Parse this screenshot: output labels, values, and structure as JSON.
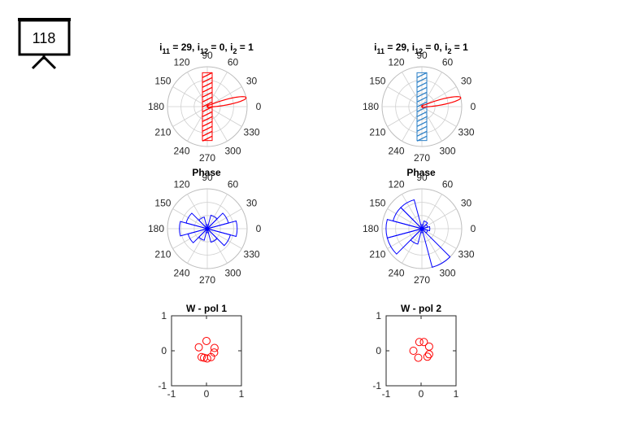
{
  "slide": {
    "number": "118"
  },
  "icon": "presentation-easel-icon",
  "colors": {
    "red": "#ff0000",
    "blue": "#0000ff",
    "hatch_blue": "#2a7fc7",
    "grid": "#cfcfcf"
  },
  "polar_angle_labels": [
    "0",
    "30",
    "60",
    "90",
    "120",
    "150",
    "180",
    "210",
    "240",
    "270",
    "300",
    "330"
  ],
  "chart_data": [
    {
      "id": "beam-left",
      "type": "polar-line",
      "title": {
        "base": "i",
        "s1": "11",
        "m1": " = 29, i",
        "s2": "12",
        "m2": " = 0, i",
        "s3": "2",
        "m3": " = 1"
      },
      "beam": {
        "color": "#ff0000",
        "peak_angle_deg": 13,
        "peak_r": 1.0
      },
      "hatch": {
        "color": "#ff0000",
        "style": "red"
      },
      "grid": true
    },
    {
      "id": "beam-right",
      "type": "polar-line",
      "title": {
        "base": "i",
        "s1": "11",
        "m1": " = 29, i",
        "s2": "12",
        "m2": " = 0, i",
        "s3": "2",
        "m3": " = 1"
      },
      "beam": {
        "color": "#ff0000",
        "peak_angle_deg": 13,
        "peak_r": 1.0
      },
      "hatch": {
        "color": "#2a7fc7",
        "style": "blue"
      },
      "grid": true
    },
    {
      "id": "phase-left",
      "type": "polar-histogram",
      "title": "Phase",
      "bin_width_deg": 30,
      "bins": [
        {
          "center": 0,
          "r": 0.75
        },
        {
          "center": 30,
          "r": 0.55
        },
        {
          "center": 60,
          "r": 0.35
        },
        {
          "center": 90,
          "r": 0.1
        },
        {
          "center": 120,
          "r": 0.3
        },
        {
          "center": 150,
          "r": 0.55
        },
        {
          "center": 180,
          "r": 0.7
        },
        {
          "center": 210,
          "r": 0.5
        },
        {
          "center": 240,
          "r": 0.3
        },
        {
          "center": 270,
          "r": 0.1
        },
        {
          "center": 300,
          "r": 0.35
        },
        {
          "center": 330,
          "r": 0.6
        }
      ],
      "color": "#0000ff",
      "grid": true
    },
    {
      "id": "phase-right",
      "type": "polar-histogram",
      "title": "Phase",
      "bin_width_deg": 30,
      "bins": [
        {
          "center": 0,
          "r": 0.2
        },
        {
          "center": 30,
          "r": 0.15
        },
        {
          "center": 60,
          "r": 0.2
        },
        {
          "center": 90,
          "r": 0.1
        },
        {
          "center": 120,
          "r": 0.75
        },
        {
          "center": 150,
          "r": 0.75
        },
        {
          "center": 180,
          "r": 0.9
        },
        {
          "center": 210,
          "r": 0.9
        },
        {
          "center": 240,
          "r": 0.4
        },
        {
          "center": 270,
          "r": 0.1
        },
        {
          "center": 300,
          "r": 1.0
        },
        {
          "center": 330,
          "r": 0.15
        }
      ],
      "color": "#0000ff",
      "grid": true
    },
    {
      "id": "w-pol1",
      "type": "scatter",
      "title": "W - pol 1",
      "xlim": [
        -1,
        1
      ],
      "ylim": [
        -1,
        1
      ],
      "xticks": [
        "-1",
        "0",
        "1"
      ],
      "yticks": [
        "-1",
        "0",
        "1"
      ],
      "points": [
        {
          "x": 0.0,
          "y": 0.28
        },
        {
          "x": 0.23,
          "y": 0.08
        },
        {
          "x": 0.22,
          "y": -0.05
        },
        {
          "x": 0.13,
          "y": -0.18
        },
        {
          "x": 0.02,
          "y": -0.22
        },
        {
          "x": -0.14,
          "y": -0.18
        },
        {
          "x": -0.22,
          "y": 0.1
        },
        {
          "x": -0.07,
          "y": -0.2
        }
      ],
      "marker": "circle",
      "color": "#ff0000"
    },
    {
      "id": "w-pol2",
      "type": "scatter",
      "title": "W - pol 2",
      "xlim": [
        -1,
        1
      ],
      "ylim": [
        -1,
        1
      ],
      "xticks": [
        "-1",
        "0",
        "1"
      ],
      "yticks": [
        "-1",
        "0",
        "1"
      ],
      "points": [
        {
          "x": -0.05,
          "y": 0.25
        },
        {
          "x": 0.08,
          "y": 0.25
        },
        {
          "x": 0.23,
          "y": 0.12
        },
        {
          "x": 0.23,
          "y": -0.1
        },
        {
          "x": 0.18,
          "y": -0.17
        },
        {
          "x": -0.22,
          "y": 0.0
        },
        {
          "x": -0.08,
          "y": -0.2
        }
      ],
      "marker": "circle",
      "color": "#ff0000"
    }
  ]
}
